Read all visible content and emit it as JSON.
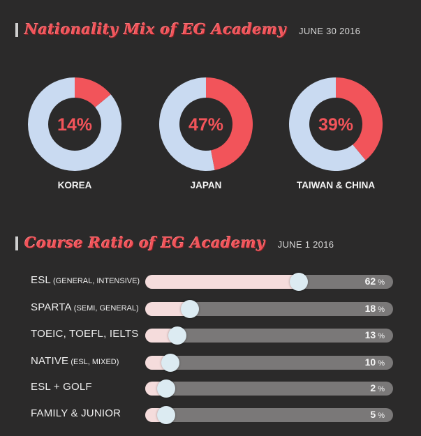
{
  "section1": {
    "title": "Nationality Mix of EG Academy",
    "date": "JUNE 30 2016"
  },
  "section2": {
    "title": "Course Ratio of EG Academy",
    "date": "JUNE 1 2016"
  },
  "colors": {
    "accent": "#f2545a",
    "ring_rest": "#c9daf1",
    "bar_fill": "#f5dcdc",
    "bar_track": "#7a7878",
    "knob": "#dcebf2",
    "background": "#2b2a2a"
  },
  "chart_data": [
    {
      "type": "pie",
      "title": "Nationality Mix of EG Academy",
      "subtitle": "JUNE 30 2016",
      "categories": [
        "KOREA",
        "JAPAN",
        "TAIWAN & CHINA"
      ],
      "values": [
        14,
        47,
        39
      ],
      "value_labels": [
        "14%",
        "47%",
        "39%"
      ]
    },
    {
      "type": "bar",
      "title": "Course Ratio of EG Academy",
      "subtitle": "JUNE 1 2016",
      "categories": [
        "ESL",
        "SPARTA",
        "TOEIC, TOEFL, IELTS",
        "NATIVE",
        "ESL + GOLF",
        "FAMILY & JUNIOR"
      ],
      "category_notes": [
        "(GENERAL, INTENSIVE)",
        "(SEMI, GENERAL)",
        "",
        "(ESL, MIXED)",
        "",
        ""
      ],
      "values": [
        62,
        18,
        13,
        10,
        2,
        5
      ],
      "unit": "%",
      "ylim": [
        0,
        100
      ]
    }
  ]
}
